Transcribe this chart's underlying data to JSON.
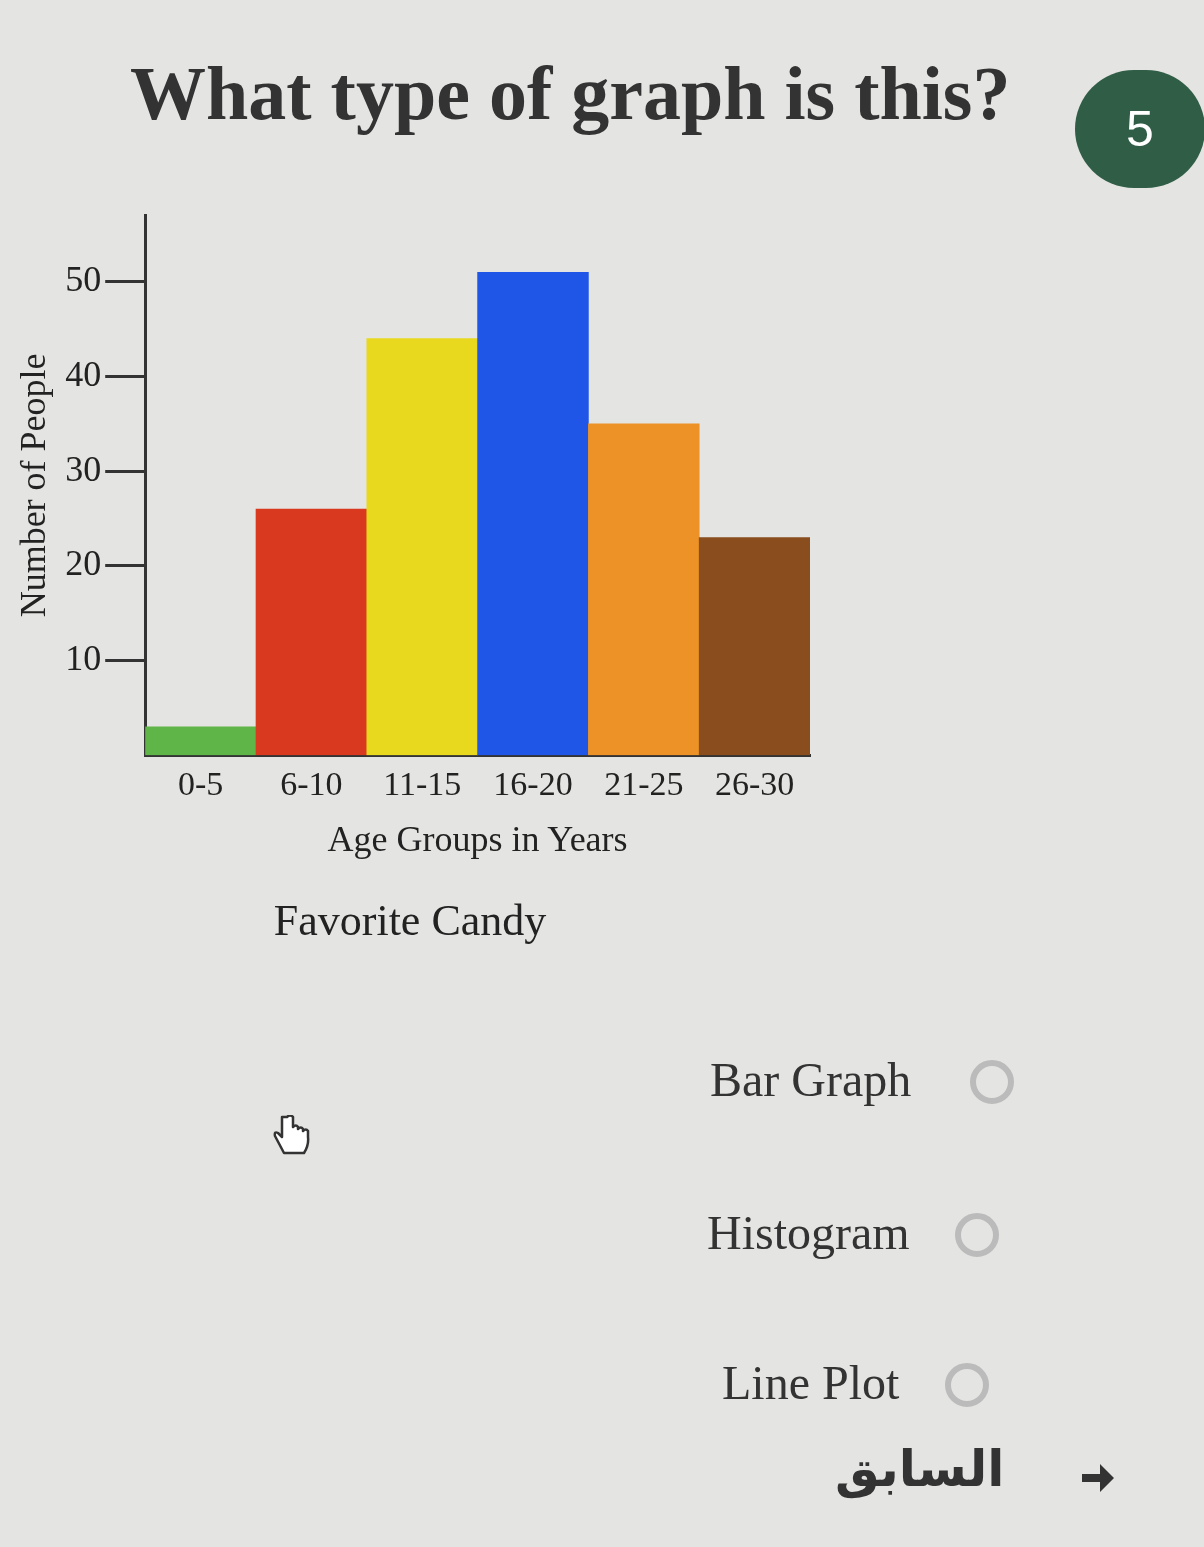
{
  "chart_data": {
    "type": "bar",
    "title": "Favorite Candy",
    "xlabel": "Age Groups in Years",
    "ylabel": "Number of People",
    "categories": [
      "0-5",
      "6-10",
      "11-15",
      "16-20",
      "21-25",
      "26-30"
    ],
    "values": [
      3,
      26,
      44,
      51,
      35,
      23
    ],
    "colors": [
      "#5fb548",
      "#d8391f",
      "#e8d91f",
      "#1f56e8",
      "#ec9226",
      "#8a4e1e"
    ],
    "ylim": [
      0,
      57
    ],
    "yticks": [
      10,
      20,
      30,
      40,
      50
    ],
    "grid": false,
    "legend": false,
    "annotations": [
      "What type of graph is this?",
      "5",
      "Bar Graph",
      "Histogram",
      "Line Plot",
      "السابق"
    ]
  }
}
